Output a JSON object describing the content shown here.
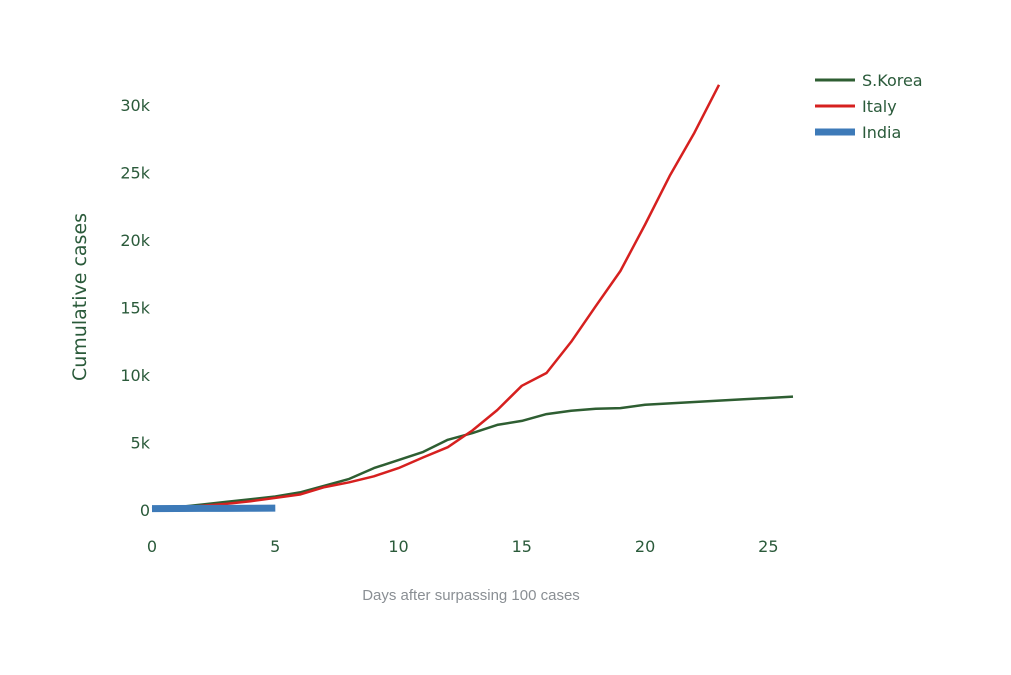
{
  "chart_data": {
    "type": "line",
    "title": "",
    "xlabel": "Days after surpassing 100 cases",
    "ylabel": "Cumulative cases",
    "xlim": [
      0,
      26
    ],
    "ylim": [
      -2000,
      32000
    ],
    "x_ticks": [
      0,
      5,
      10,
      15,
      20,
      25
    ],
    "x_tick_labels": [
      "0",
      "5",
      "10",
      "15",
      "20",
      "25"
    ],
    "y_ticks": [
      0,
      5000,
      10000,
      15000,
      20000,
      25000,
      30000
    ],
    "y_tick_labels": [
      "0",
      "5k",
      "10k",
      "15k",
      "20k",
      "25k",
      "30k"
    ],
    "grid": false,
    "legend_position": "top-right",
    "series": [
      {
        "name": "S.Korea",
        "color": "#2e5e32",
        "x": [
          0,
          1,
          2,
          3,
          4,
          5,
          6,
          7,
          8,
          9,
          10,
          11,
          12,
          13,
          14,
          15,
          16,
          17,
          18,
          19,
          20,
          21,
          22,
          23,
          24,
          25,
          26
        ],
        "values": [
          100,
          200,
          400,
          600,
          800,
          1000,
          1300,
          1800,
          2300,
          3100,
          3700,
          4300,
          5200,
          5700,
          6300,
          6600,
          7100,
          7350,
          7500,
          7550,
          7800,
          7900,
          8000,
          8100,
          8200,
          8300,
          8400
        ]
      },
      {
        "name": "Italy",
        "color": "#d6201f",
        "x": [
          0,
          1,
          2,
          3,
          4,
          5,
          6,
          7,
          8,
          9,
          10,
          11,
          12,
          13,
          14,
          15,
          16,
          17,
          18,
          19,
          20,
          21,
          22,
          23
        ],
        "values": [
          100,
          150,
          300,
          450,
          650,
          900,
          1150,
          1700,
          2050,
          2500,
          3100,
          3900,
          4650,
          5900,
          7400,
          9200,
          10150,
          12450,
          15100,
          17700,
          21150,
          24750,
          27950,
          31500
        ]
      },
      {
        "name": "India",
        "color": "#3d7ab8",
        "x": [
          0,
          1,
          2,
          3,
          4,
          5
        ],
        "values": [
          100,
          110,
          115,
          120,
          125,
          140
        ]
      }
    ]
  }
}
